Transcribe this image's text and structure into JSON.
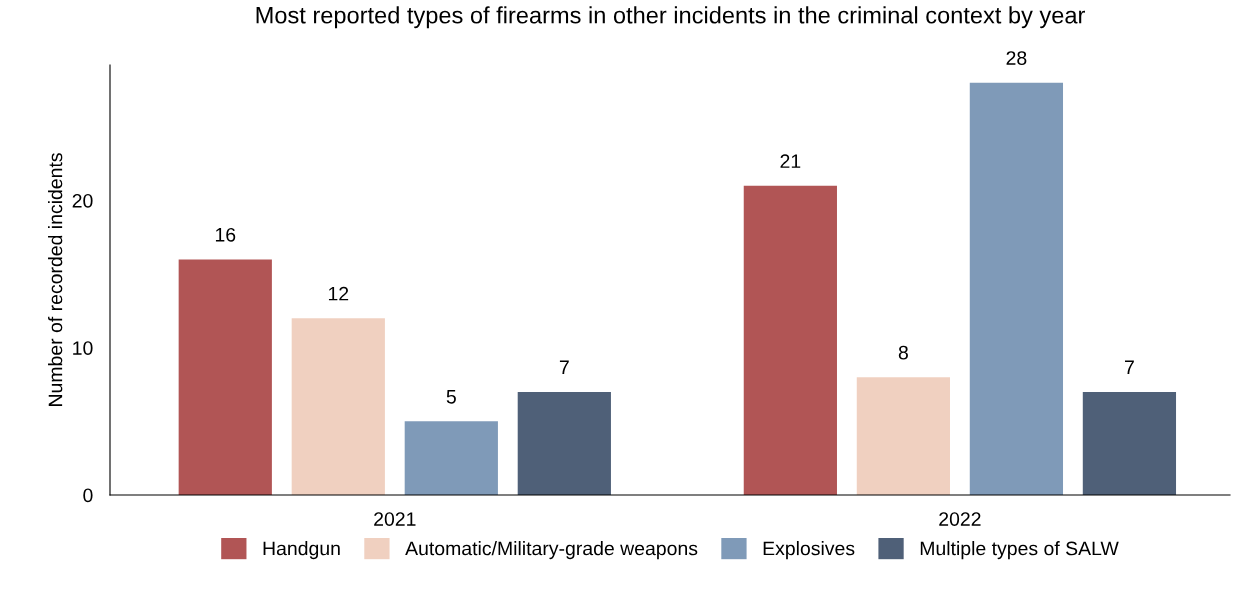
{
  "chart_data": {
    "type": "bar",
    "title": "Most reported types of firearms in other incidents in the criminal context by year",
    "ylabel": "Number of recorded incidents",
    "categories": [
      "2021",
      "2022"
    ],
    "series": [
      {
        "name": "Handgun",
        "color": "#b15555",
        "values": [
          16,
          21
        ]
      },
      {
        "name": "Automatic/Military-grade weapons",
        "color": "#f0d0c0",
        "values": [
          12,
          8
        ]
      },
      {
        "name": "Explosives",
        "color": "#7f9ab8",
        "values": [
          5,
          28
        ]
      },
      {
        "name": "Multiple types of SALW",
        "color": "#4f6078",
        "values": [
          7,
          7
        ]
      }
    ],
    "ylim": [
      0,
      29.2
    ],
    "yticks": [
      0,
      10,
      20
    ],
    "data_labels": true,
    "legend": "bottom",
    "grid": false
  }
}
